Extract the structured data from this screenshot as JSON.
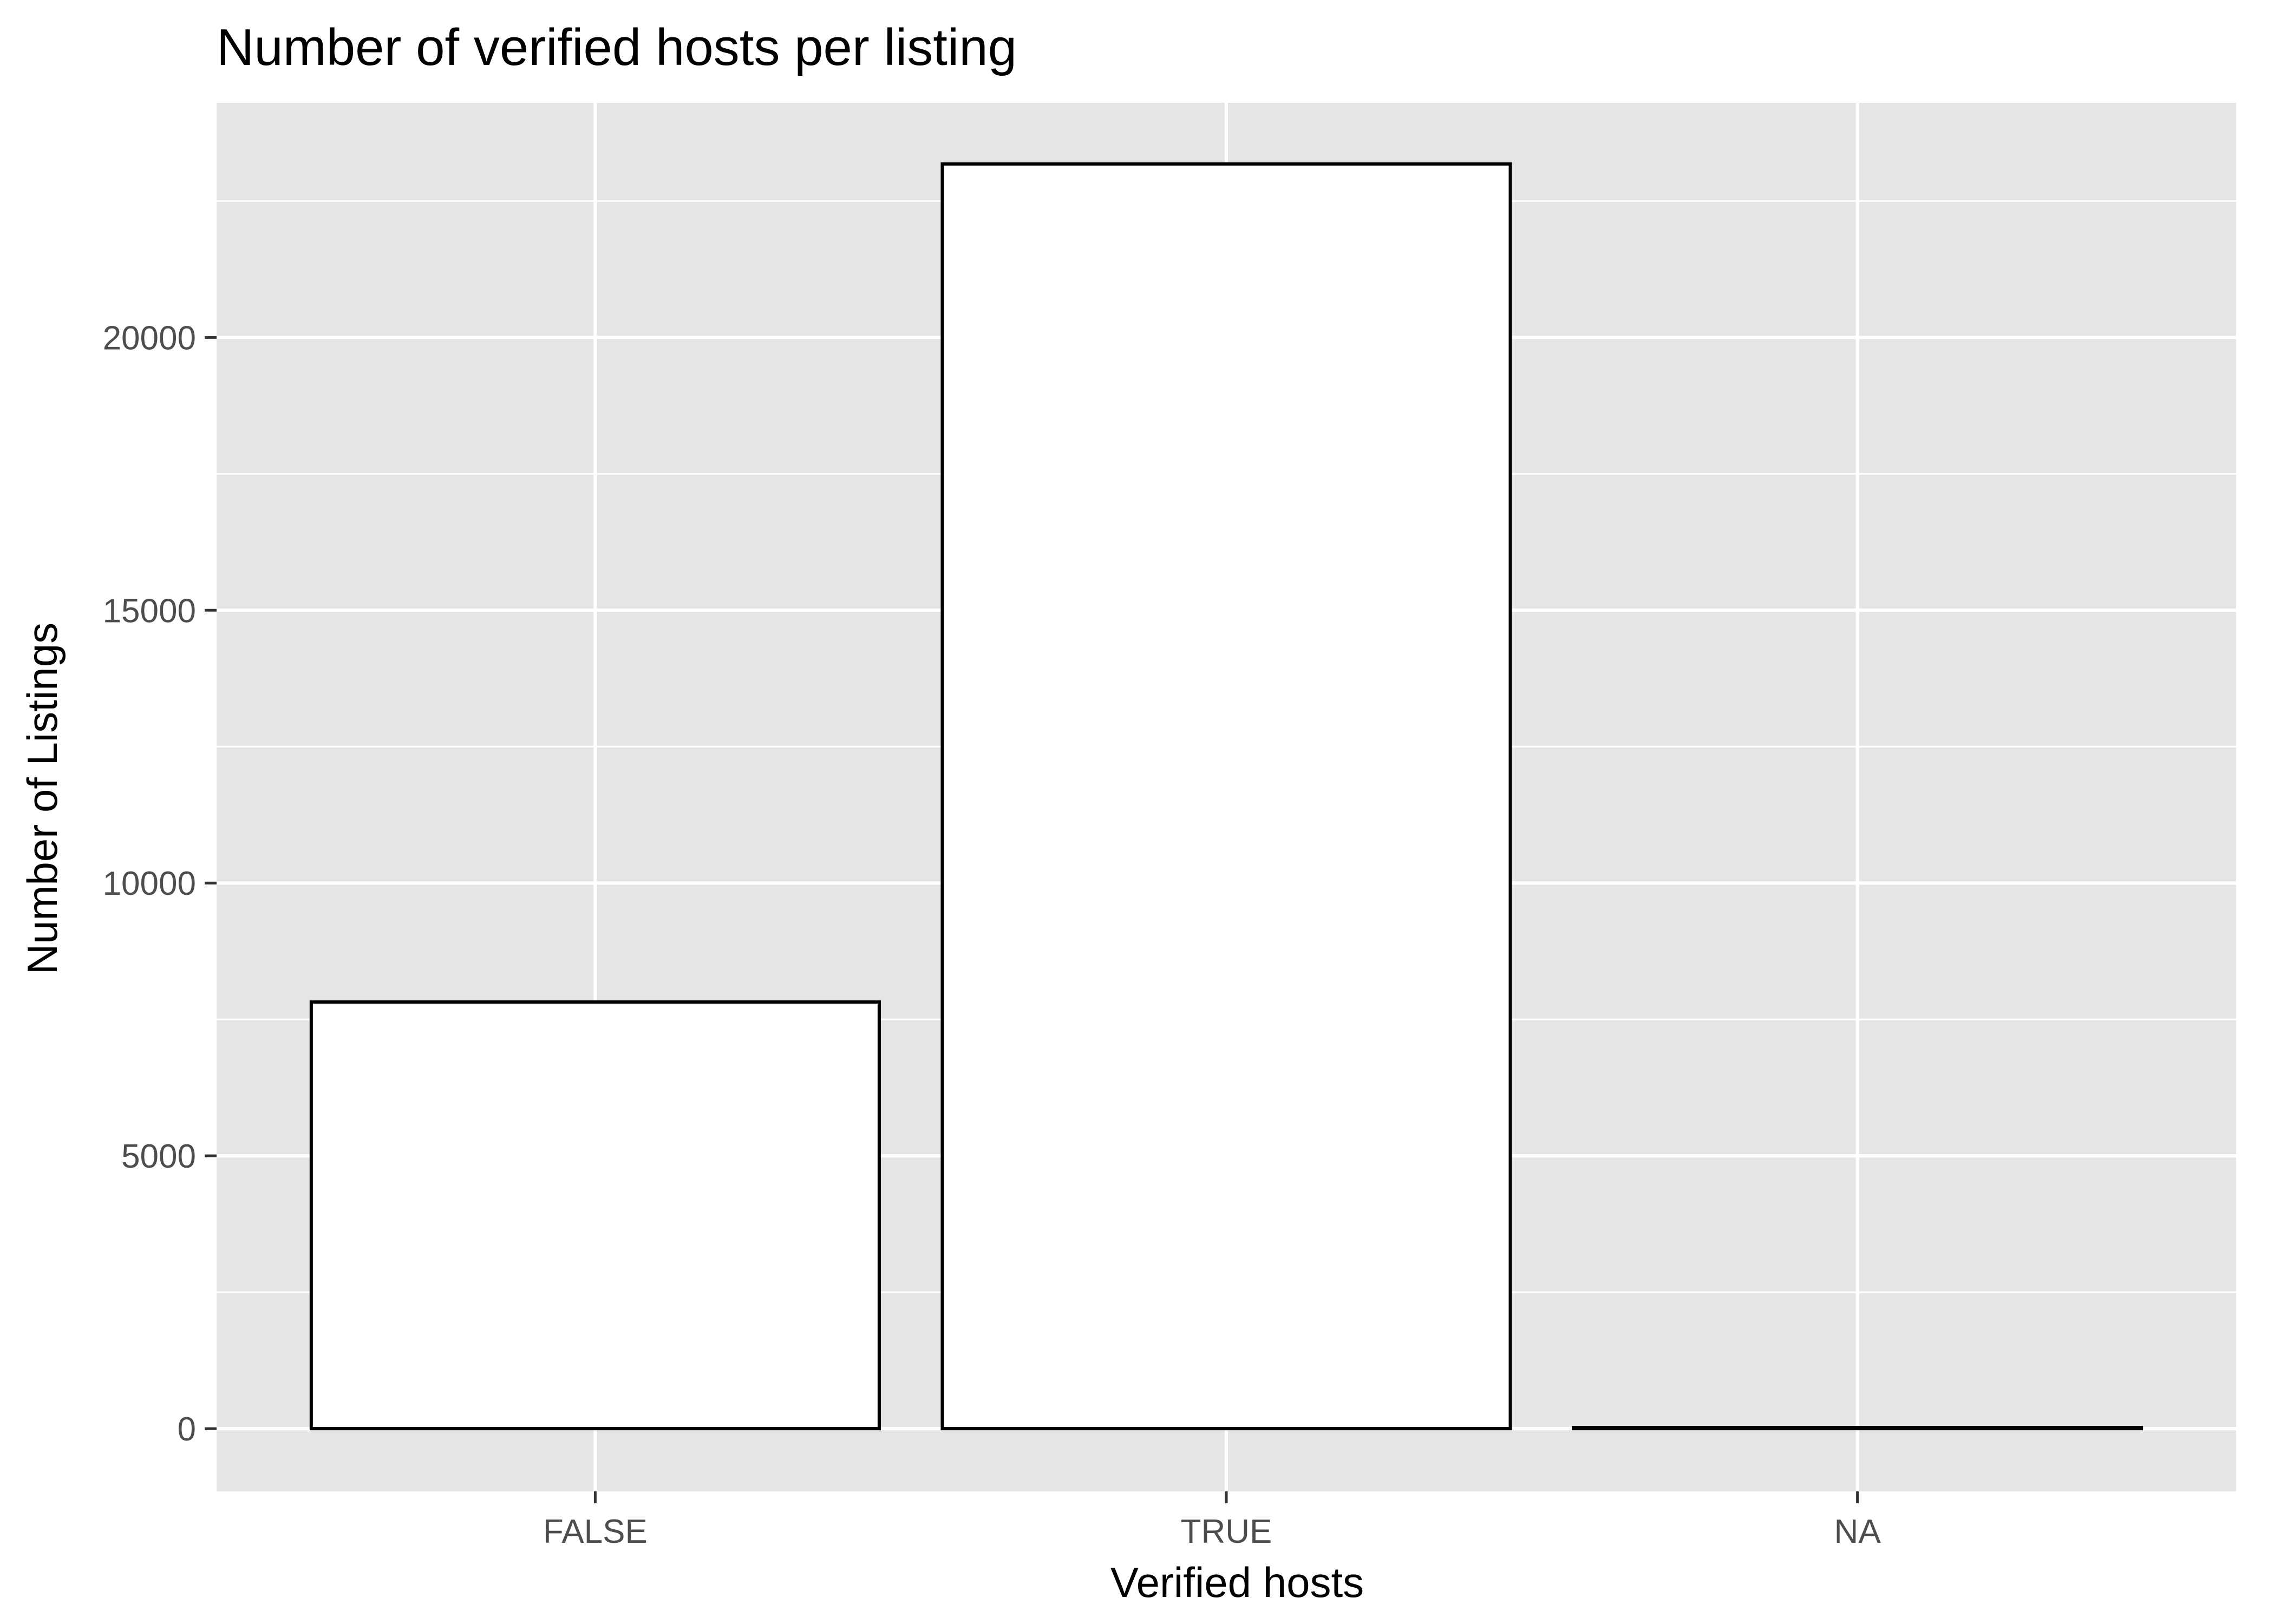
{
  "chart_data": {
    "type": "bar",
    "title": "Number of verified hosts per listing",
    "xlabel": "Verified hosts",
    "ylabel": "Number of Listings",
    "categories": [
      "FALSE",
      "TRUE",
      "NA"
    ],
    "values": [
      7820,
      23180,
      20
    ],
    "ylim": [
      -1150,
      24300
    ],
    "yticks": [
      0,
      5000,
      10000,
      15000,
      20000
    ],
    "ytick_labels": [
      "0",
      "5000",
      "10000",
      "15000",
      "20000"
    ],
    "grid": true,
    "legend": "none",
    "colors": {
      "panel_background": "#e5e5e5",
      "grid_line": "#ffffff",
      "bar_fill": "#ffffff",
      "bar_outline": "#000000",
      "tick_text": "#4d4d4d",
      "text": "#000000"
    }
  }
}
